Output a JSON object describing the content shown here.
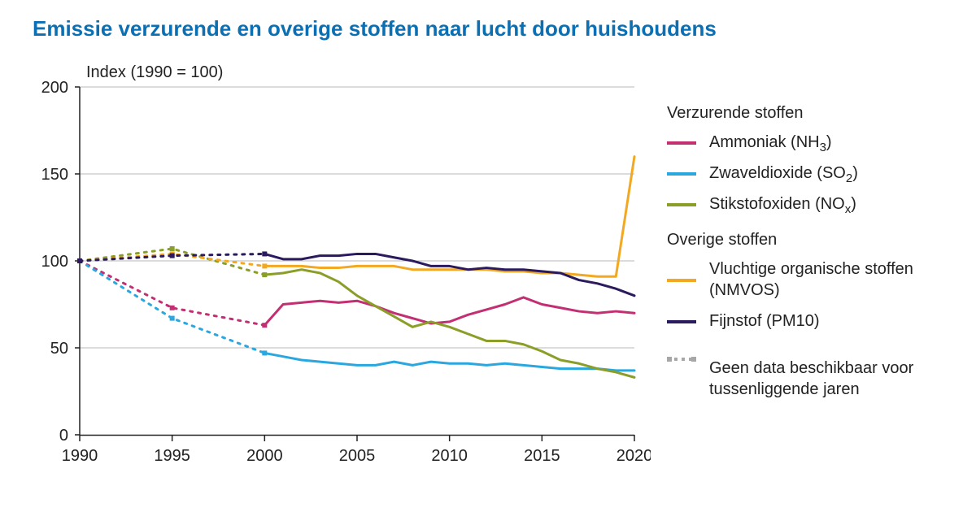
{
  "title": "Emissie verzurende en overige stoffen naar lucht door huishoudens",
  "chart": {
    "type": "line",
    "subtitle": "Index (1990 = 100)",
    "subtitle_fontsize": 20,
    "background_color": "#ffffff",
    "grid_color": "#b8b8b8",
    "axis_color": "#222222",
    "axis_fontsize": 20,
    "tick_fontsize": 20,
    "xlim": [
      1990,
      2020
    ],
    "ylim": [
      0,
      200
    ],
    "xtick_step": 5,
    "ytick_step": 50,
    "xticks": [
      1990,
      1995,
      2000,
      2005,
      2010,
      2015,
      2020
    ],
    "yticks": [
      0,
      50,
      100,
      150,
      200
    ],
    "line_width": 3,
    "marker_size": 6,
    "dashed_segments_endpoints": [
      1990,
      1995,
      2000
    ],
    "series": [
      {
        "id": "nh3",
        "label": "Ammoniak",
        "sub": "3",
        "formula": "NH",
        "color": "#c22f72",
        "points": [
          [
            1990,
            100
          ],
          [
            1995,
            73
          ],
          [
            2000,
            63
          ],
          [
            2001,
            75
          ],
          [
            2002,
            76
          ],
          [
            2003,
            77
          ],
          [
            2004,
            76
          ],
          [
            2005,
            77
          ],
          [
            2006,
            74
          ],
          [
            2007,
            70
          ],
          [
            2008,
            67
          ],
          [
            2009,
            64
          ],
          [
            2010,
            65
          ],
          [
            2011,
            69
          ],
          [
            2012,
            72
          ],
          [
            2013,
            75
          ],
          [
            2014,
            79
          ],
          [
            2015,
            75
          ],
          [
            2016,
            73
          ],
          [
            2017,
            71
          ],
          [
            2018,
            70
          ],
          [
            2019,
            71
          ],
          [
            2020,
            70
          ]
        ]
      },
      {
        "id": "so2",
        "label": "Zwaveldioxide",
        "sub": "2",
        "formula": "SO",
        "color": "#2aa7df",
        "points": [
          [
            1990,
            100
          ],
          [
            1995,
            67
          ],
          [
            2000,
            47
          ],
          [
            2001,
            45
          ],
          [
            2002,
            43
          ],
          [
            2003,
            42
          ],
          [
            2004,
            41
          ],
          [
            2005,
            40
          ],
          [
            2006,
            40
          ],
          [
            2007,
            42
          ],
          [
            2008,
            40
          ],
          [
            2009,
            42
          ],
          [
            2010,
            41
          ],
          [
            2011,
            41
          ],
          [
            2012,
            40
          ],
          [
            2013,
            41
          ],
          [
            2014,
            40
          ],
          [
            2015,
            39
          ],
          [
            2016,
            38
          ],
          [
            2017,
            38
          ],
          [
            2018,
            38
          ],
          [
            2019,
            37
          ],
          [
            2020,
            37
          ]
        ]
      },
      {
        "id": "nox",
        "label": "Stikstofoxiden",
        "sub": "x",
        "formula": "NO",
        "color": "#8b9e28",
        "points": [
          [
            1990,
            100
          ],
          [
            1995,
            107
          ],
          [
            2000,
            92
          ],
          [
            2001,
            93
          ],
          [
            2002,
            95
          ],
          [
            2003,
            93
          ],
          [
            2004,
            88
          ],
          [
            2005,
            80
          ],
          [
            2006,
            74
          ],
          [
            2007,
            68
          ],
          [
            2008,
            62
          ],
          [
            2009,
            65
          ],
          [
            2010,
            62
          ],
          [
            2011,
            58
          ],
          [
            2012,
            54
          ],
          [
            2013,
            54
          ],
          [
            2014,
            52
          ],
          [
            2015,
            48
          ],
          [
            2016,
            43
          ],
          [
            2017,
            41
          ],
          [
            2018,
            38
          ],
          [
            2019,
            36
          ],
          [
            2020,
            33
          ]
        ]
      },
      {
        "id": "nmvos",
        "label": "Vluchtige organische stoffen (NMVOS)",
        "color": "#f2a921",
        "points": [
          [
            1990,
            100
          ],
          [
            1995,
            104
          ],
          [
            2000,
            97
          ],
          [
            2001,
            97
          ],
          [
            2002,
            97
          ],
          [
            2003,
            96
          ],
          [
            2004,
            96
          ],
          [
            2005,
            97
          ],
          [
            2006,
            97
          ],
          [
            2007,
            97
          ],
          [
            2008,
            95
          ],
          [
            2009,
            95
          ],
          [
            2010,
            95
          ],
          [
            2011,
            95
          ],
          [
            2012,
            95
          ],
          [
            2013,
            94
          ],
          [
            2014,
            94
          ],
          [
            2015,
            93
          ],
          [
            2016,
            93
          ],
          [
            2017,
            92
          ],
          [
            2018,
            91
          ],
          [
            2019,
            91
          ],
          [
            2020,
            160
          ]
        ]
      },
      {
        "id": "pm10",
        "label": "Fijnstof (PM10)",
        "color": "#2b1a5e",
        "points": [
          [
            1990,
            100
          ],
          [
            1995,
            103
          ],
          [
            2000,
            104
          ],
          [
            2001,
            101
          ],
          [
            2002,
            101
          ],
          [
            2003,
            103
          ],
          [
            2004,
            103
          ],
          [
            2005,
            104
          ],
          [
            2006,
            104
          ],
          [
            2007,
            102
          ],
          [
            2008,
            100
          ],
          [
            2009,
            97
          ],
          [
            2010,
            97
          ],
          [
            2011,
            95
          ],
          [
            2012,
            96
          ],
          [
            2013,
            95
          ],
          [
            2014,
            95
          ],
          [
            2015,
            94
          ],
          [
            2016,
            93
          ],
          [
            2017,
            89
          ],
          [
            2018,
            87
          ],
          [
            2019,
            84
          ],
          [
            2020,
            80
          ]
        ]
      }
    ]
  },
  "legend": {
    "group1_heading": "Verzurende stoffen",
    "group2_heading": "Overige stoffen",
    "note_label": "Geen data beschikbaar voor tussenliggende jaren",
    "note_color": "#a7a7a7"
  }
}
